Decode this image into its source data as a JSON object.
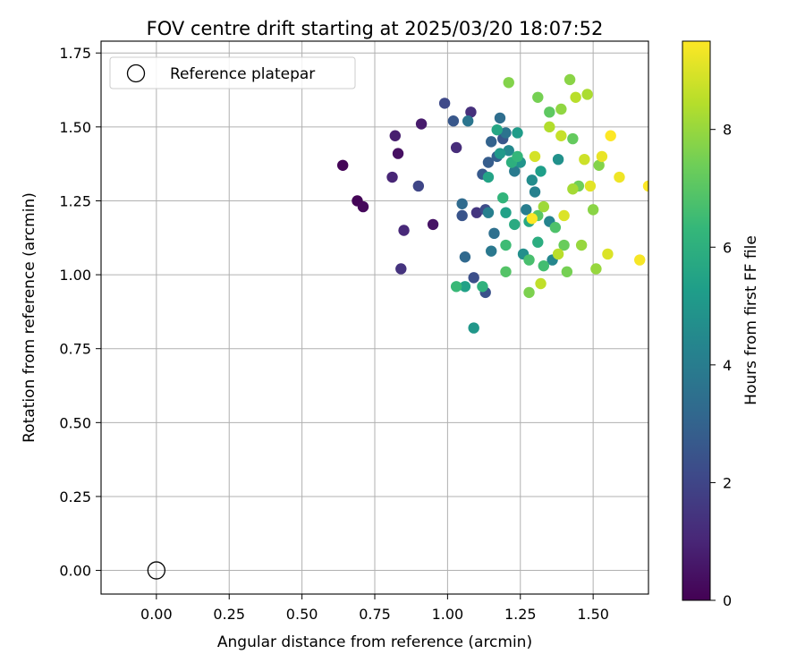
{
  "chart_data": {
    "type": "scatter",
    "title": "FOV centre drift starting at 2025/03/20 18:07:52",
    "xlabel": "Angular distance from reference (arcmin)",
    "ylabel": "Rotation from reference (arcmin)",
    "xlim": [
      -0.19,
      1.69
    ],
    "ylim": [
      -0.08,
      1.79
    ],
    "xticks": [
      0.0,
      0.25,
      0.5,
      0.75,
      1.0,
      1.25,
      1.5
    ],
    "xtick_labels": [
      "0.00",
      "0.25",
      "0.50",
      "0.75",
      "1.00",
      "1.25",
      "1.50"
    ],
    "yticks": [
      0.0,
      0.25,
      0.5,
      0.75,
      1.0,
      1.25,
      1.5,
      1.75
    ],
    "ytick_labels": [
      "0.00",
      "0.25",
      "0.50",
      "0.75",
      "1.00",
      "1.25",
      "1.50",
      "1.75"
    ],
    "grid": true,
    "legend": {
      "placement": "top-left",
      "entries": [
        "Reference platepar"
      ]
    },
    "reference_point": {
      "x": 0.0,
      "y": 0.0,
      "label": "Reference platepar"
    },
    "colorbar": {
      "label": "Hours from first FF file",
      "colormap": "viridis",
      "range": [
        0,
        9.5
      ],
      "ticks": [
        0,
        2,
        4,
        6,
        8
      ],
      "tick_labels": [
        "0",
        "2",
        "4",
        "6",
        "8"
      ],
      "stops": [
        "#440154",
        "#482878",
        "#3e4989",
        "#31688e",
        "#26828e",
        "#1f9e89",
        "#35b779",
        "#6ece58",
        "#b5de2b",
        "#fde725"
      ]
    },
    "points": [
      {
        "x": 0.64,
        "y": 1.37,
        "h": 0.1
      },
      {
        "x": 0.69,
        "y": 1.25,
        "h": 0.1
      },
      {
        "x": 0.71,
        "y": 1.23,
        "h": 0.2
      },
      {
        "x": 0.83,
        "y": 1.41,
        "h": 0.4
      },
      {
        "x": 0.95,
        "y": 1.17,
        "h": 0.5
      },
      {
        "x": 0.91,
        "y": 1.51,
        "h": 0.7
      },
      {
        "x": 0.82,
        "y": 1.47,
        "h": 0.8
      },
      {
        "x": 0.81,
        "y": 1.33,
        "h": 1.0
      },
      {
        "x": 0.85,
        "y": 1.15,
        "h": 1.1
      },
      {
        "x": 1.03,
        "y": 1.43,
        "h": 1.2
      },
      {
        "x": 1.08,
        "y": 1.55,
        "h": 1.3
      },
      {
        "x": 0.84,
        "y": 1.02,
        "h": 1.4
      },
      {
        "x": 1.1,
        "y": 1.21,
        "h": 1.5
      },
      {
        "x": 0.9,
        "y": 1.3,
        "h": 2.0
      },
      {
        "x": 0.99,
        "y": 1.58,
        "h": 2.1
      },
      {
        "x": 1.13,
        "y": 1.22,
        "h": 2.2
      },
      {
        "x": 1.09,
        "y": 0.99,
        "h": 2.3
      },
      {
        "x": 1.13,
        "y": 0.94,
        "h": 2.4
      },
      {
        "x": 1.05,
        "y": 1.2,
        "h": 2.5
      },
      {
        "x": 1.02,
        "y": 1.52,
        "h": 2.6
      },
      {
        "x": 1.19,
        "y": 1.46,
        "h": 2.6
      },
      {
        "x": 1.12,
        "y": 1.34,
        "h": 2.7
      },
      {
        "x": 1.14,
        "y": 1.38,
        "h": 2.8
      },
      {
        "x": 1.17,
        "y": 1.4,
        "h": 2.9
      },
      {
        "x": 1.15,
        "y": 1.45,
        "h": 3.0
      },
      {
        "x": 1.06,
        "y": 1.06,
        "h": 3.2
      },
      {
        "x": 1.05,
        "y": 1.24,
        "h": 3.3
      },
      {
        "x": 1.18,
        "y": 1.53,
        "h": 3.4
      },
      {
        "x": 1.16,
        "y": 1.14,
        "h": 3.5
      },
      {
        "x": 1.2,
        "y": 1.48,
        "h": 3.6
      },
      {
        "x": 1.07,
        "y": 1.52,
        "h": 3.7
      },
      {
        "x": 1.15,
        "y": 1.08,
        "h": 3.8
      },
      {
        "x": 1.23,
        "y": 1.35,
        "h": 3.9
      },
      {
        "x": 1.27,
        "y": 1.22,
        "h": 4.0
      },
      {
        "x": 1.14,
        "y": 1.21,
        "h": 4.1
      },
      {
        "x": 1.3,
        "y": 1.28,
        "h": 4.2
      },
      {
        "x": 1.35,
        "y": 1.18,
        "h": 4.3
      },
      {
        "x": 1.36,
        "y": 1.05,
        "h": 4.4
      },
      {
        "x": 1.21,
        "y": 1.42,
        "h": 4.5
      },
      {
        "x": 1.29,
        "y": 1.32,
        "h": 4.6
      },
      {
        "x": 1.26,
        "y": 1.07,
        "h": 4.7
      },
      {
        "x": 1.38,
        "y": 1.39,
        "h": 4.8
      },
      {
        "x": 1.25,
        "y": 1.38,
        "h": 4.9
      },
      {
        "x": 1.09,
        "y": 0.82,
        "h": 5.0
      },
      {
        "x": 1.18,
        "y": 1.41,
        "h": 5.1
      },
      {
        "x": 1.24,
        "y": 1.48,
        "h": 5.2
      },
      {
        "x": 1.32,
        "y": 1.35,
        "h": 5.3
      },
      {
        "x": 1.2,
        "y": 1.21,
        "h": 5.4
      },
      {
        "x": 1.06,
        "y": 0.96,
        "h": 5.4
      },
      {
        "x": 1.14,
        "y": 1.33,
        "h": 5.5
      },
      {
        "x": 1.17,
        "y": 1.49,
        "h": 5.6
      },
      {
        "x": 1.28,
        "y": 1.18,
        "h": 5.7
      },
      {
        "x": 1.23,
        "y": 1.17,
        "h": 5.8
      },
      {
        "x": 1.31,
        "y": 1.11,
        "h": 5.9
      },
      {
        "x": 1.22,
        "y": 1.38,
        "h": 6.0
      },
      {
        "x": 1.12,
        "y": 0.96,
        "h": 6.1
      },
      {
        "x": 1.19,
        "y": 1.26,
        "h": 6.2
      },
      {
        "x": 1.24,
        "y": 1.4,
        "h": 6.3
      },
      {
        "x": 1.03,
        "y": 0.96,
        "h": 6.4
      },
      {
        "x": 1.2,
        "y": 1.1,
        "h": 6.5
      },
      {
        "x": 1.33,
        "y": 1.03,
        "h": 6.6
      },
      {
        "x": 1.28,
        "y": 1.05,
        "h": 6.7
      },
      {
        "x": 1.37,
        "y": 1.16,
        "h": 6.8
      },
      {
        "x": 1.2,
        "y": 1.01,
        "h": 6.9
      },
      {
        "x": 1.31,
        "y": 1.2,
        "h": 7.0
      },
      {
        "x": 1.35,
        "y": 1.55,
        "h": 7.1
      },
      {
        "x": 1.43,
        "y": 1.46,
        "h": 7.2
      },
      {
        "x": 1.4,
        "y": 1.1,
        "h": 7.3
      },
      {
        "x": 1.45,
        "y": 1.3,
        "h": 7.4
      },
      {
        "x": 1.31,
        "y": 1.6,
        "h": 7.5
      },
      {
        "x": 1.41,
        "y": 1.01,
        "h": 7.5
      },
      {
        "x": 1.28,
        "y": 0.94,
        "h": 7.6
      },
      {
        "x": 1.52,
        "y": 1.37,
        "h": 7.7
      },
      {
        "x": 1.21,
        "y": 1.65,
        "h": 7.7
      },
      {
        "x": 1.42,
        "y": 1.66,
        "h": 7.8
      },
      {
        "x": 1.5,
        "y": 1.22,
        "h": 7.8
      },
      {
        "x": 1.39,
        "y": 1.56,
        "h": 7.9
      },
      {
        "x": 1.51,
        "y": 1.02,
        "h": 8.0
      },
      {
        "x": 1.46,
        "y": 1.1,
        "h": 8.0
      },
      {
        "x": 1.33,
        "y": 1.23,
        "h": 8.1
      },
      {
        "x": 1.43,
        "y": 1.29,
        "h": 8.2
      },
      {
        "x": 1.48,
        "y": 1.61,
        "h": 8.3
      },
      {
        "x": 1.35,
        "y": 1.5,
        "h": 8.4
      },
      {
        "x": 1.44,
        "y": 1.6,
        "h": 8.5
      },
      {
        "x": 1.38,
        "y": 1.07,
        "h": 8.5
      },
      {
        "x": 1.32,
        "y": 0.97,
        "h": 8.6
      },
      {
        "x": 1.39,
        "y": 1.47,
        "h": 8.7
      },
      {
        "x": 1.47,
        "y": 1.39,
        "h": 8.8
      },
      {
        "x": 1.3,
        "y": 1.4,
        "h": 8.9
      },
      {
        "x": 1.4,
        "y": 1.2,
        "h": 9.0
      },
      {
        "x": 1.55,
        "y": 1.07,
        "h": 9.0
      },
      {
        "x": 1.49,
        "y": 1.3,
        "h": 9.1
      },
      {
        "x": 1.53,
        "y": 1.4,
        "h": 9.2
      },
      {
        "x": 1.59,
        "y": 1.33,
        "h": 9.3
      },
      {
        "x": 1.66,
        "y": 1.05,
        "h": 9.4
      },
      {
        "x": 1.56,
        "y": 1.47,
        "h": 9.5
      },
      {
        "x": 1.29,
        "y": 1.19,
        "h": 9.5
      },
      {
        "x": 1.69,
        "y": 1.3,
        "h": 9.5
      }
    ]
  }
}
